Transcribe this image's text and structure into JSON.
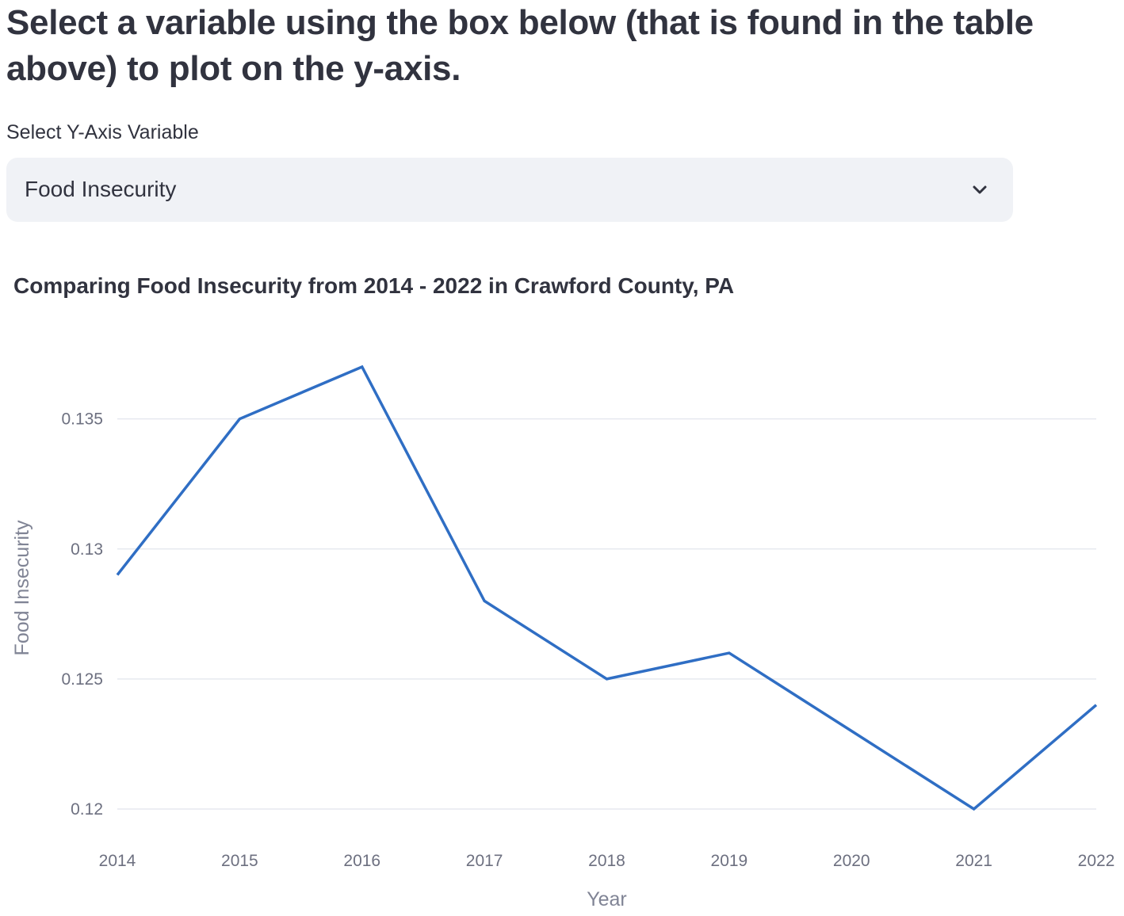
{
  "heading": "Select a variable using the box below (that is found in the table above) to plot on the y-axis.",
  "select": {
    "label": "Select Y-Axis Variable",
    "value": "Food Insecurity",
    "icon": "chevron-down-icon"
  },
  "colors": {
    "line": "#2f6ec4",
    "grid": "#e6e9ef",
    "text": "#31333f",
    "axis_text": "#6d7080",
    "select_bg": "#f0f2f6"
  },
  "chart_data": {
    "type": "line",
    "title": "Comparing Food Insecurity from 2014 - 2022 in Crawford County, PA",
    "xlabel": "Year",
    "ylabel": "Food Insecurity",
    "x": [
      2014,
      2015,
      2016,
      2017,
      2018,
      2019,
      2020,
      2021,
      2022
    ],
    "x_tick_labels": [
      "2014",
      "2015",
      "2016",
      "2017",
      "2018",
      "2019",
      "2020",
      "2021",
      "2022"
    ],
    "y_ticks": [
      0.12,
      0.125,
      0.13,
      0.135
    ],
    "y_tick_labels": [
      "0.12",
      "0.125",
      "0.13",
      "0.135"
    ],
    "ylim": [
      0.12,
      0.137
    ],
    "grid": "horizontal",
    "series": [
      {
        "values": [
          0.129,
          0.135,
          0.137,
          0.128,
          0.125,
          0.126,
          0.123,
          0.12,
          0.124
        ]
      }
    ]
  }
}
